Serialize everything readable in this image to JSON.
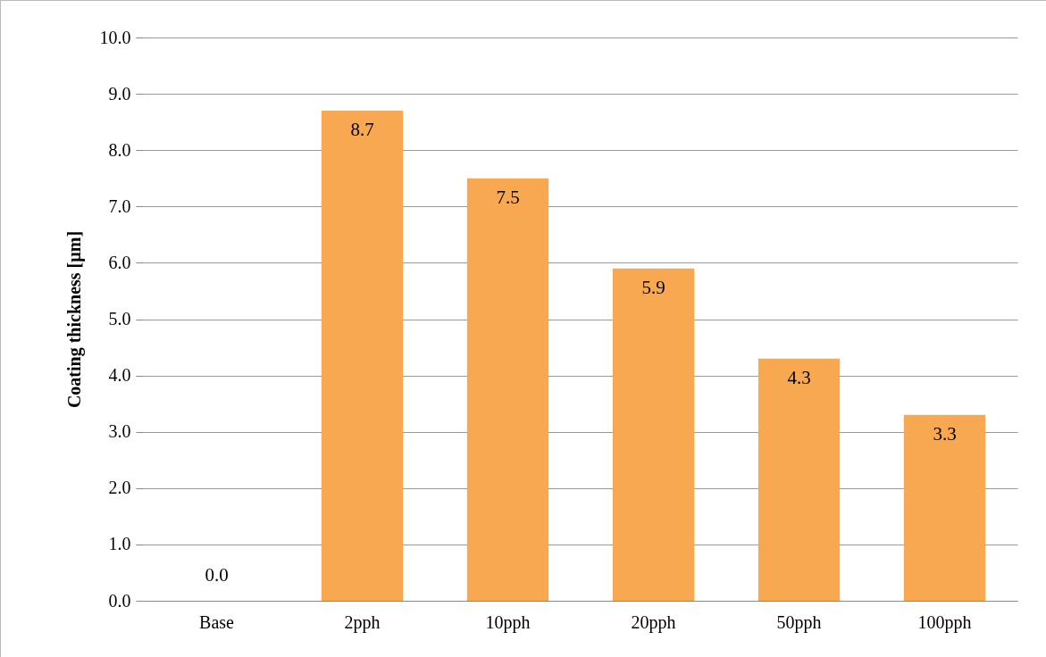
{
  "chart_data": {
    "type": "bar",
    "ylabel": "Coating thickness [µm]",
    "categories": [
      "Base",
      "2pph",
      "10pph",
      "20pph",
      "50pph",
      "100pph"
    ],
    "values": [
      0.0,
      8.7,
      7.5,
      5.9,
      4.3,
      3.3
    ],
    "color": "#f9a852",
    "ylim": [
      0,
      10
    ],
    "yticks": [
      {
        "value": 0,
        "label": "0.0"
      },
      {
        "value": 1,
        "label": "1.0"
      },
      {
        "value": 2,
        "label": "2.0"
      },
      {
        "value": 3,
        "label": "3.0"
      },
      {
        "value": 4,
        "label": "4.0"
      },
      {
        "value": 5,
        "label": "5.0"
      },
      {
        "value": 6,
        "label": "6.0"
      },
      {
        "value": 7,
        "label": "7.0"
      },
      {
        "value": 8,
        "label": "8.0"
      },
      {
        "value": 9,
        "label": "9.0"
      },
      {
        "value": 10,
        "label": "10.0"
      }
    ],
    "value_labels": [
      "0.0",
      "8.7",
      "7.5",
      "5.9",
      "4.3",
      "3.3"
    ],
    "grid": "y"
  }
}
